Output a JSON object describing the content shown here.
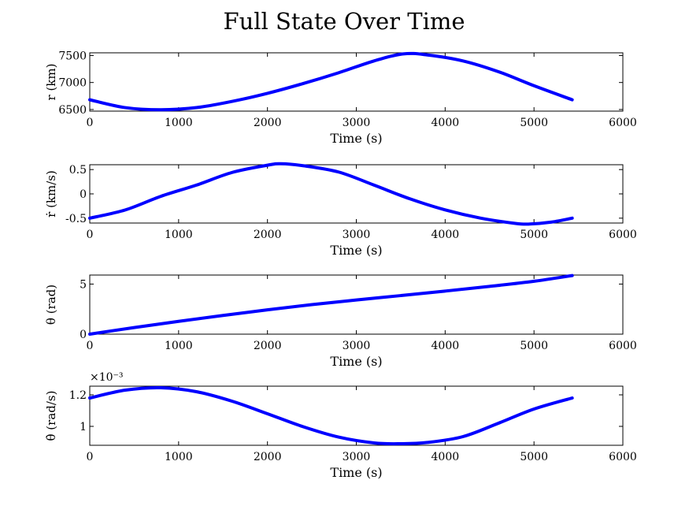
{
  "figure": {
    "title": "Full State Over Time"
  },
  "chart_data": [
    {
      "type": "line",
      "xlabel": "Time (s)",
      "ylabel": "r (km)",
      "xlim": [
        0,
        6000
      ],
      "ylim": [
        6470,
        7550
      ],
      "xticks": [
        "0",
        "1000",
        "2000",
        "3000",
        "4000",
        "5000",
        "6000"
      ],
      "yticks": [
        6500,
        7000,
        7500
      ],
      "ytick_labels": [
        "6500",
        "7000",
        "7500"
      ],
      "y_multiplier": "",
      "series": [
        {
          "color": "#0000ff",
          "x": [
            0,
            400,
            800,
            1200,
            1600,
            2000,
            2400,
            2800,
            3200,
            3530,
            3800,
            4200,
            4600,
            5000,
            5430
          ],
          "y": [
            6680,
            6535,
            6495,
            6535,
            6650,
            6800,
            6980,
            7180,
            7400,
            7530,
            7510,
            7400,
            7200,
            6940,
            6680
          ]
        }
      ]
    },
    {
      "type": "line",
      "xlabel": "Time (s)",
      "ylabel": "ṙ (km/s)",
      "xlim": [
        0,
        6000
      ],
      "ylim": [
        -0.6,
        0.6
      ],
      "xticks": [
        "0",
        "1000",
        "2000",
        "3000",
        "4000",
        "5000",
        "6000"
      ],
      "yticks": [
        -0.5,
        0,
        0.5
      ],
      "ytick_labels": [
        "-0.5",
        "0",
        "0.5"
      ],
      "y_multiplier": "",
      "series": [
        {
          "color": "#0000ff",
          "x": [
            0,
            400,
            800,
            1200,
            1600,
            2000,
            2150,
            2400,
            2800,
            3200,
            3600,
            4000,
            4400,
            4800,
            4950,
            5200,
            5430
          ],
          "y": [
            -0.5,
            -0.33,
            -0.05,
            0.18,
            0.44,
            0.59,
            0.62,
            0.58,
            0.45,
            0.18,
            -0.1,
            -0.33,
            -0.5,
            -0.61,
            -0.62,
            -0.58,
            -0.5
          ]
        }
      ]
    },
    {
      "type": "line",
      "xlabel": "Time (s)",
      "ylabel": "θ (rad)",
      "xlim": [
        0,
        6000
      ],
      "ylim": [
        0,
        5.9
      ],
      "xticks": [
        "0",
        "1000",
        "2000",
        "3000",
        "4000",
        "5000",
        "6000"
      ],
      "yticks": [
        0,
        5
      ],
      "ytick_labels": [
        "0",
        "5"
      ],
      "y_multiplier": "",
      "series": [
        {
          "color": "#0000ff",
          "x": [
            0,
            500,
            1000,
            1500,
            2000,
            2500,
            3000,
            3500,
            4000,
            4500,
            5000,
            5430
          ],
          "y": [
            0,
            0.66,
            1.28,
            1.87,
            2.43,
            2.95,
            3.41,
            3.85,
            4.3,
            4.77,
            5.28,
            5.85
          ]
        }
      ]
    },
    {
      "type": "line",
      "xlabel": "Time (s)",
      "ylabel": "θ̇ (rad/s)",
      "xlim": [
        0,
        6000
      ],
      "ylim": [
        0.00088,
        0.001255
      ],
      "xticks": [
        "0",
        "1000",
        "2000",
        "3000",
        "4000",
        "5000",
        "6000"
      ],
      "yticks": [
        0.001,
        0.0012
      ],
      "ytick_labels": [
        "1",
        "1.2"
      ],
      "y_multiplier": "×10⁻³",
      "series": [
        {
          "color": "#0000ff",
          "x": [
            0,
            400,
            800,
            1200,
            1600,
            2000,
            2400,
            2800,
            3200,
            3500,
            3800,
            4200,
            4600,
            5000,
            5430
          ],
          "y": [
            0.00118,
            0.00123,
            0.001245,
            0.00122,
            0.00116,
            0.00108,
            0.000998,
            0.000932,
            0.000895,
            0.00089,
            0.000898,
            0.000935,
            0.00102,
            0.00111,
            0.00118
          ]
        }
      ]
    }
  ]
}
